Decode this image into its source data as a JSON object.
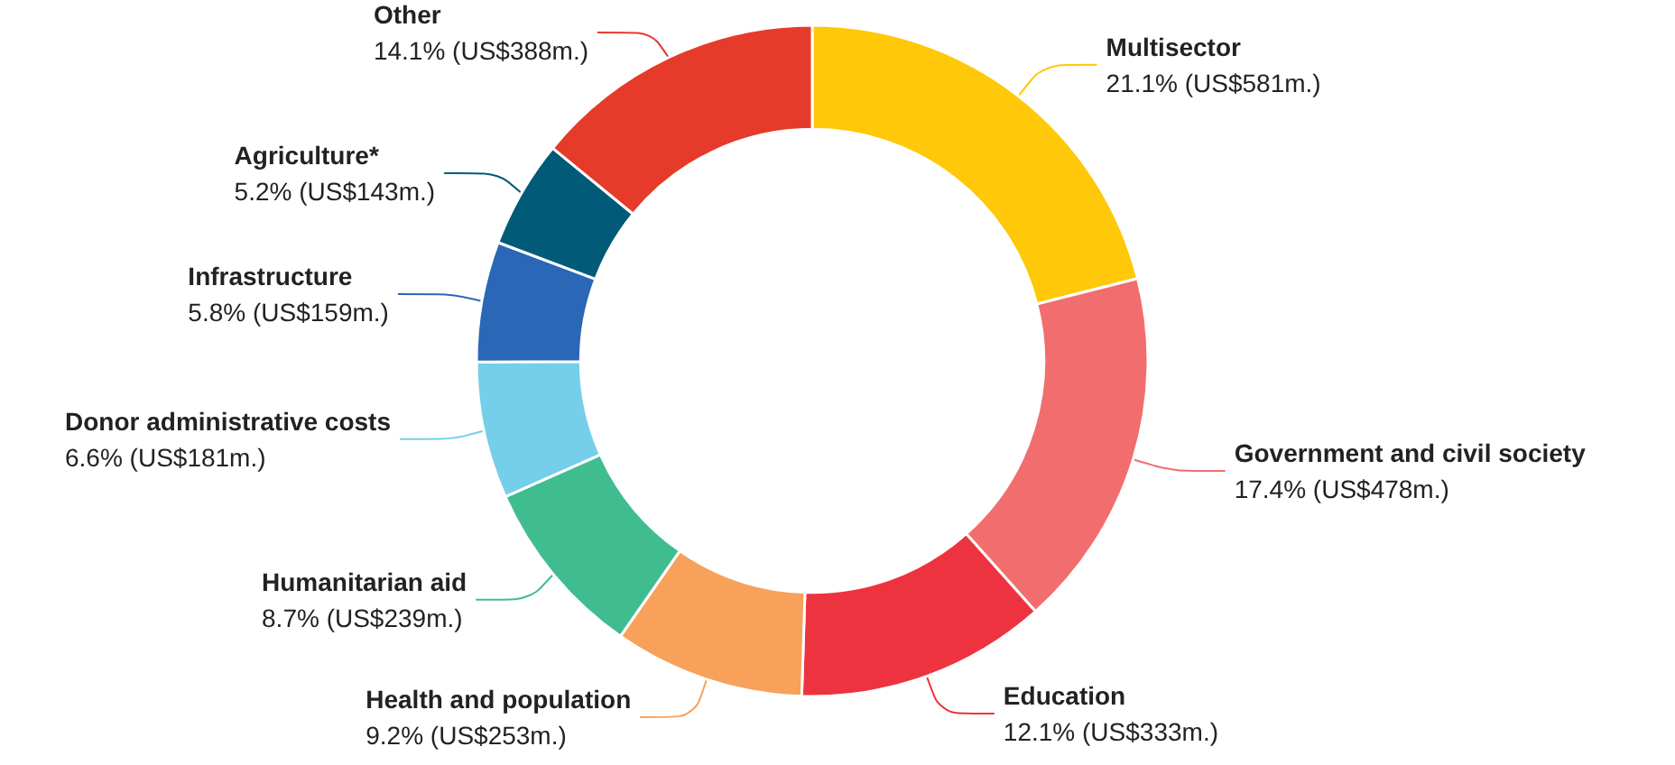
{
  "chart_data": {
    "type": "donut",
    "categories": [
      "Multisector",
      "Government and civil society",
      "Education",
      "Health and population",
      "Humanitarian aid",
      "Donor administrative costs",
      "Infrastructure",
      "Agriculture*",
      "Other"
    ],
    "values": [
      21.1,
      17.4,
      12.1,
      9.2,
      8.7,
      6.6,
      5.8,
      5.2,
      14.1
    ],
    "value_labels": [
      "21.1% (US$581m.)",
      "17.4% (US$478m.)",
      "12.1% (US$333m.)",
      "9.2% (US$253m.)",
      "8.7% (US$239m.)",
      "6.6% (US$181m.)",
      "5.8% (US$159m.)",
      "5.2% (US$143m.)",
      "14.1% (US$388m.)"
    ],
    "colors": [
      "#ffc808",
      "#f26d6d",
      "#ee3340",
      "#f7a15a",
      "#40bd90",
      "#75cfea",
      "#2a67b6",
      "#005a78",
      "#e63a2a"
    ],
    "legend": false
  }
}
